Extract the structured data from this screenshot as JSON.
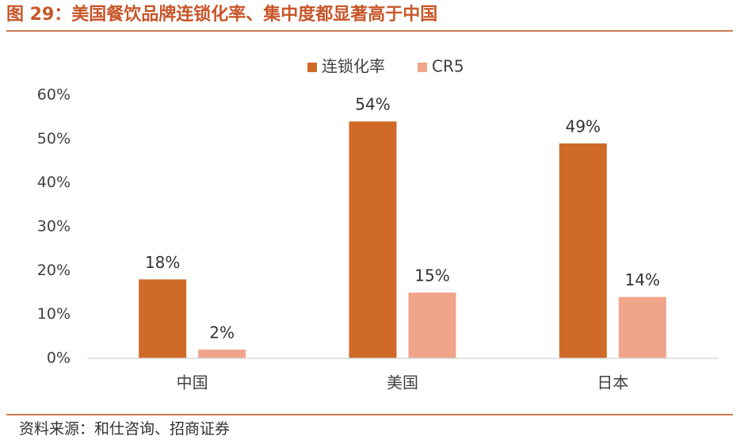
{
  "figure": {
    "title": "图 29：美国餐饮品牌连锁化率、集中度都显著高于中国",
    "source": "资料来源：和仕咨询、招商证券"
  },
  "chart_data": {
    "type": "bar",
    "categories": [
      "中国",
      "美国",
      "日本"
    ],
    "series": [
      {
        "name": "连锁化率",
        "values": [
          18,
          54,
          49
        ],
        "labels": [
          "18%",
          "54%",
          "49%"
        ],
        "color": "#d06a28"
      },
      {
        "name": "CR5",
        "values": [
          2,
          15,
          14
        ],
        "labels": [
          "2%",
          "15%",
          "14%"
        ],
        "color": "#f0a58a"
      }
    ],
    "ylim": [
      0,
      60
    ],
    "yticks": [
      {
        "value": 0,
        "label": "0%"
      },
      {
        "value": 10,
        "label": "10%"
      },
      {
        "value": 20,
        "label": "20%"
      },
      {
        "value": 30,
        "label": "30%"
      },
      {
        "value": 40,
        "label": "40%"
      },
      {
        "value": 50,
        "label": "50%"
      },
      {
        "value": 60,
        "label": "60%"
      }
    ],
    "legend_position": "top-center",
    "grid": false,
    "data_labels": true
  }
}
